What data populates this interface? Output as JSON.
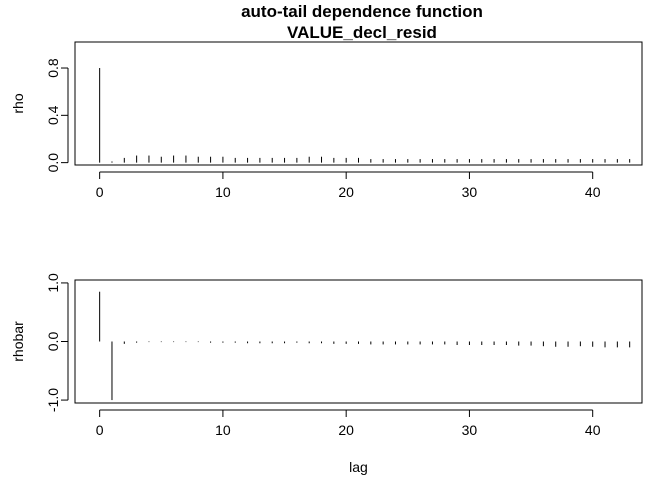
{
  "chart_data": [
    {
      "type": "bar",
      "title": "auto-tail dependence function",
      "subtitle": "VALUE_decl_resid",
      "xlabel": "",
      "ylabel": "rho",
      "xlim": [
        -2,
        44
      ],
      "ylim": [
        -0.02,
        1.02
      ],
      "x_ticks": [
        0,
        10,
        20,
        30,
        40
      ],
      "y_ticks": [
        0.0,
        0.4,
        0.8
      ],
      "y_tick_labels": [
        "0.0",
        "0.4",
        "0.8"
      ],
      "x": [
        0,
        1,
        2,
        3,
        4,
        5,
        6,
        7,
        8,
        9,
        10,
        11,
        12,
        13,
        14,
        15,
        16,
        17,
        18,
        19,
        20,
        21,
        22,
        23,
        24,
        25,
        26,
        27,
        28,
        29,
        30,
        31,
        32,
        33,
        34,
        35,
        36,
        37,
        38,
        39,
        40,
        41,
        42,
        43
      ],
      "values": [
        0.8,
        0.01,
        0.04,
        0.06,
        0.06,
        0.05,
        0.06,
        0.06,
        0.05,
        0.05,
        0.05,
        0.04,
        0.04,
        0.04,
        0.04,
        0.04,
        0.04,
        0.05,
        0.05,
        0.04,
        0.04,
        0.04,
        0.03,
        0.03,
        0.03,
        0.03,
        0.03,
        0.03,
        0.03,
        0.03,
        0.03,
        0.03,
        0.03,
        0.03,
        0.03,
        0.03,
        0.03,
        0.03,
        0.03,
        0.03,
        0.03,
        0.03,
        0.03,
        0.03
      ]
    },
    {
      "type": "bar",
      "title": "",
      "xlabel": "lag",
      "ylabel": "rhobar",
      "xlim": [
        -2,
        44
      ],
      "ylim": [
        -1.05,
        1.05
      ],
      "x_ticks": [
        0,
        10,
        20,
        30,
        40
      ],
      "y_ticks": [
        -1.0,
        0.0,
        1.0
      ],
      "y_tick_labels": [
        "-1.0",
        "0.0",
        "1.0"
      ],
      "x": [
        0,
        1,
        2,
        3,
        4,
        5,
        6,
        7,
        8,
        9,
        10,
        11,
        12,
        13,
        14,
        15,
        16,
        17,
        18,
        19,
        20,
        21,
        22,
        23,
        24,
        25,
        26,
        27,
        28,
        29,
        30,
        31,
        32,
        33,
        34,
        35,
        36,
        37,
        38,
        39,
        40,
        41,
        42,
        43
      ],
      "values": [
        0.85,
        -1.0,
        -0.04,
        -0.02,
        -0.01,
        -0.01,
        -0.01,
        -0.01,
        -0.01,
        -0.02,
        -0.02,
        -0.02,
        -0.03,
        -0.03,
        -0.03,
        -0.03,
        -0.02,
        -0.03,
        -0.03,
        -0.04,
        -0.04,
        -0.04,
        -0.05,
        -0.05,
        -0.05,
        -0.05,
        -0.05,
        -0.05,
        -0.05,
        -0.06,
        -0.06,
        -0.06,
        -0.06,
        -0.06,
        -0.07,
        -0.07,
        -0.08,
        -0.09,
        -0.09,
        -0.08,
        -0.09,
        -0.1,
        -0.1,
        -0.1
      ]
    }
  ]
}
